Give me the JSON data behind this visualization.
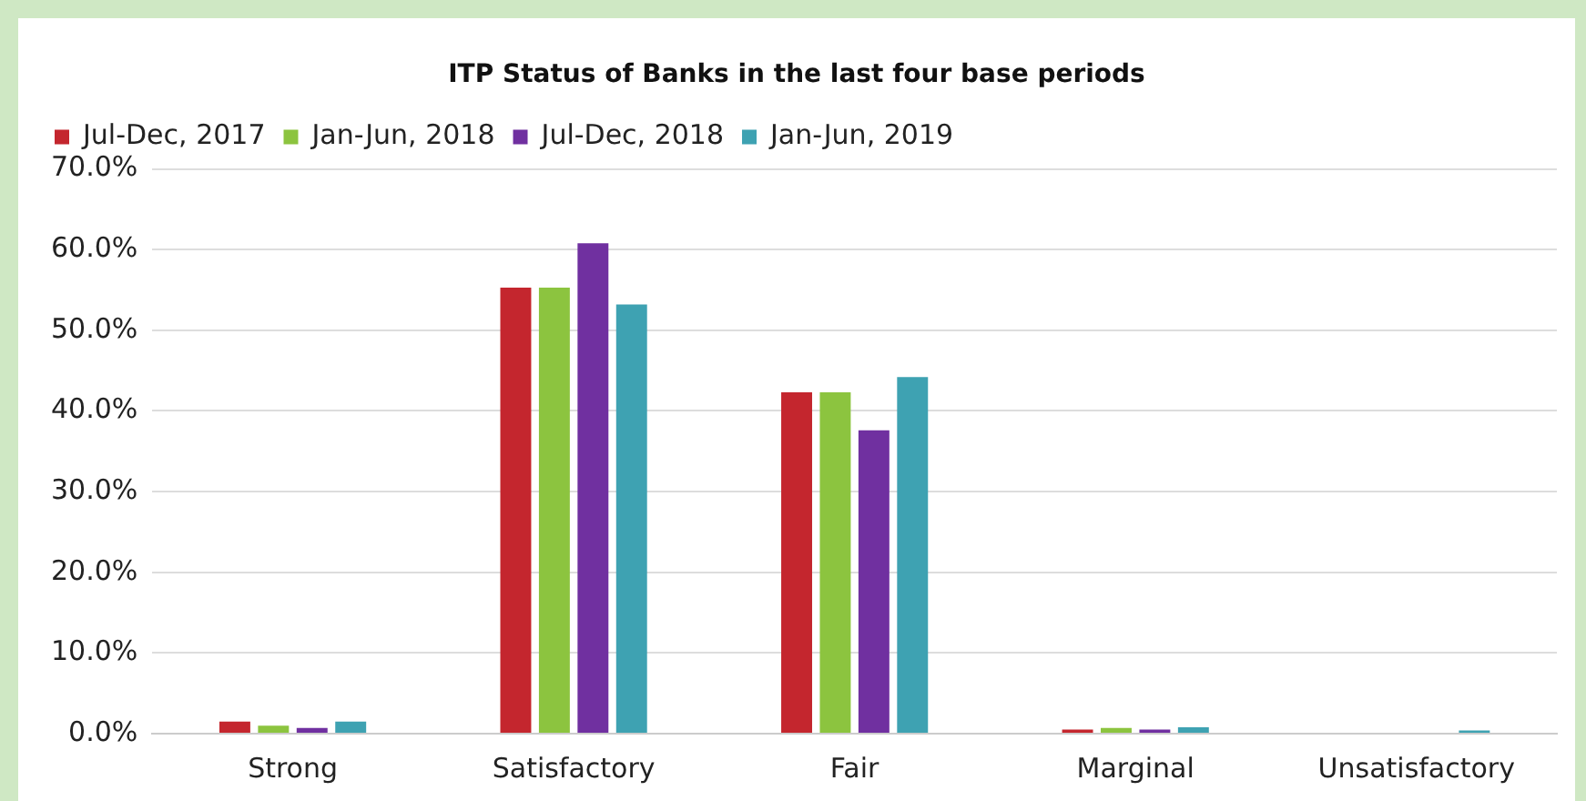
{
  "chart_data": {
    "type": "bar",
    "title": "ITP Status of Banks in the last four base periods",
    "categories": [
      "Strong",
      "Satisfactory",
      "Fair",
      "Marginal",
      "Unsatisfactory"
    ],
    "series": [
      {
        "name": "Jul-Dec, 2017",
        "color": "#c4262e",
        "values": [
          1.5,
          55.3,
          42.3,
          0.5,
          0
        ]
      },
      {
        "name": "Jan-Jun, 2018",
        "color": "#8cc43f",
        "values": [
          1.0,
          55.3,
          42.3,
          0.7,
          0
        ]
      },
      {
        "name": "Jul-Dec, 2018",
        "color": "#7030a0",
        "values": [
          0.7,
          60.8,
          37.6,
          0.5,
          0
        ]
      },
      {
        "name": "Jan-Jun, 2019",
        "color": "#3ea2b2",
        "values": [
          1.5,
          53.2,
          44.2,
          0.8,
          0.4
        ]
      }
    ],
    "ylim": [
      0,
      70
    ],
    "yticks": [
      {
        "value": 0,
        "label": "0.0%"
      },
      {
        "value": 10,
        "label": "10.0%"
      },
      {
        "value": 20,
        "label": "20.0%"
      },
      {
        "value": 30,
        "label": "30.0%"
      },
      {
        "value": 40,
        "label": "40.0%"
      },
      {
        "value": 50,
        "label": "50.0%"
      },
      {
        "value": 60,
        "label": "60.0%"
      },
      {
        "value": 70,
        "label": "70.0%"
      }
    ],
    "grid": "y",
    "legend": "top left"
  }
}
